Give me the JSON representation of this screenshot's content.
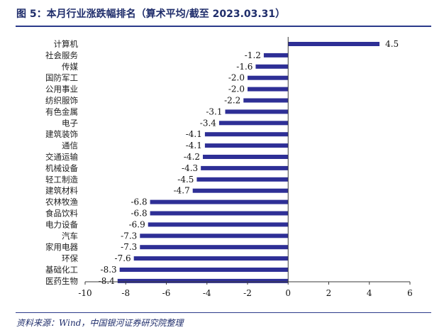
{
  "title": "图 5：本月行业涨跌幅排名（算术平均/截至 2023.03.31）",
  "source": "资料来源：Wind，中国银河证券研究院整理",
  "colors": {
    "bar": "#2e2f96",
    "axis": "#3a3a3a",
    "title": "#1f2d6b",
    "rule": "#2b3a8a"
  },
  "chart_data": {
    "type": "bar",
    "orientation": "horizontal",
    "title": "",
    "xlabel": "",
    "ylabel": "",
    "xlim": [
      -10,
      6
    ],
    "xticks": [
      -10,
      -8,
      -6,
      -4,
      -2,
      0,
      2,
      4,
      6
    ],
    "grid": false,
    "categories": [
      "计算机",
      "社会服务",
      "传媒",
      "国防军工",
      "公用事业",
      "纺织服饰",
      "有色金属",
      "电子",
      "建筑装饰",
      "通信",
      "交通运输",
      "机械设备",
      "轻工制造",
      "建筑材料",
      "农林牧渔",
      "食品饮料",
      "电力设备",
      "汽车",
      "家用电器",
      "环保",
      "基础化工",
      "医药生物"
    ],
    "values": [
      4.5,
      -1.2,
      -1.6,
      -2.0,
      -2.0,
      -2.2,
      -3.1,
      -3.4,
      -4.1,
      -4.1,
      -4.2,
      -4.3,
      -4.5,
      -4.7,
      -6.8,
      -6.8,
      -6.9,
      -7.3,
      -7.3,
      -7.6,
      -8.3,
      -8.4
    ],
    "value_labels": [
      "4.5",
      "-1.2",
      "-1.6",
      "-2.0",
      "-2.0",
      "-2.2",
      "-3.1",
      "-3.4",
      "-4.1",
      "-4.1",
      "-4.2",
      "-4.3",
      "-4.5",
      "-4.7",
      "-6.8",
      "-6.8",
      "-6.9",
      "-7.3",
      "-7.3",
      "-7.6",
      "-8.3",
      "-8.4"
    ]
  }
}
